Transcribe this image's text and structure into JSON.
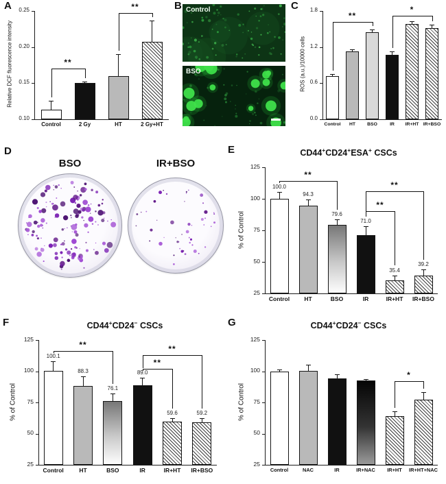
{
  "figure": {
    "background": "#ffffff",
    "panels": {
      "A": {
        "label": "A"
      },
      "B": {
        "label": "B",
        "images": [
          {
            "caption": "Control"
          },
          {
            "caption": "BSO"
          }
        ]
      },
      "C": {
        "label": "C"
      },
      "D": {
        "label": "D",
        "dishes": [
          {
            "caption": "BSO"
          },
          {
            "caption": "IR+BSO"
          }
        ]
      },
      "E": {
        "label": "E"
      },
      "F": {
        "label": "F"
      },
      "G": {
        "label": "G"
      }
    },
    "colors": {
      "bar_white": "#ffffff",
      "bar_black": "#111111",
      "bar_gray": "#b9b9b9",
      "axis": "#1a1a1a",
      "fluorescence_green_bright": "#3fe04a",
      "fluorescence_green_dim": "#2fa23f",
      "colony_purple": "#8b2fc9"
    }
  },
  "chart_data": [
    {
      "panel": "A",
      "type": "bar",
      "title": "",
      "ylabel": "Relative DCF fluorescence intensity",
      "ylim": [
        0.1,
        0.25
      ],
      "yticks": [
        0.1,
        0.15,
        0.2,
        0.25
      ],
      "ytick_labels": [
        "0.10",
        "0.15",
        "0.20",
        "0.25"
      ],
      "categories": [
        "Control",
        "2 Gy",
        "HT",
        "2 Gy+HT"
      ],
      "values": [
        0.113,
        0.15,
        0.16,
        0.207
      ],
      "errors": [
        0.013,
        0.002,
        0.03,
        0.03
      ],
      "bar_styles": [
        "white",
        "black",
        "gray",
        "hatch"
      ],
      "value_labels": null,
      "brackets": [
        {
          "from": 0,
          "to": 1,
          "label": "**",
          "y": 0.17
        },
        {
          "from": 2,
          "to": 3,
          "label": "**",
          "y": 0.247
        }
      ]
    },
    {
      "panel": "C",
      "type": "bar",
      "title": "",
      "ylabel": "ROS (a.u.)/10000 cells",
      "ylim": [
        0,
        1.8
      ],
      "yticks": [
        0,
        0.6,
        1.2,
        1.8
      ],
      "ytick_labels": [
        "0.0",
        "0.6",
        "1.2",
        "1.8"
      ],
      "categories": [
        "Control",
        "HT",
        "BSO",
        "IR",
        "IR+HT",
        "IR+BSO"
      ],
      "values": [
        0.72,
        1.13,
        1.45,
        1.07,
        1.58,
        1.52
      ],
      "errors": [
        0.03,
        0.03,
        0.04,
        0.06,
        0.05,
        0.05
      ],
      "bar_styles": [
        "white",
        "gray",
        "gray-light",
        "black",
        "hatch",
        "hatch"
      ],
      "value_labels": null,
      "brackets": [
        {
          "from": 0,
          "to": 2,
          "label": "**",
          "y": 1.62
        },
        {
          "from": 3,
          "to": 5,
          "label": "*",
          "y": 1.72
        }
      ]
    },
    {
      "panel": "E",
      "type": "bar",
      "title": "CD44+CD24+ESA+ CSCs",
      "ylabel": "% of Control",
      "ylim": [
        25,
        125
      ],
      "yticks": [
        25,
        50,
        75,
        100,
        125
      ],
      "ytick_labels": [
        "25",
        "50",
        "75",
        "100",
        "125"
      ],
      "categories": [
        "Control",
        "HT",
        "BSO",
        "IR",
        "IR+HT",
        "IR+BSO"
      ],
      "values": [
        100.0,
        94.3,
        79.6,
        71.0,
        35.4,
        39.2
      ],
      "errors": [
        5.5,
        5.0,
        4.0,
        7.0,
        4.0,
        5.0
      ],
      "bar_styles": [
        "white",
        "gray",
        "gradient",
        "black",
        "hatch",
        "hatch"
      ],
      "value_labels": [
        "100.0",
        "94.3",
        "79.6",
        "71.0",
        "35.4",
        "39.2"
      ],
      "brackets": [
        {
          "from": 0,
          "to": 2,
          "label": "**",
          "y": 114
        },
        {
          "from": 3,
          "to": 4,
          "label": "**",
          "y": 90
        },
        {
          "from": 3,
          "to": 5,
          "label": "**",
          "y": 106
        }
      ]
    },
    {
      "panel": "F",
      "type": "bar",
      "title": "CD44+CD24- CSCs",
      "ylabel": "% of Control",
      "ylim": [
        25,
        125
      ],
      "yticks": [
        25,
        50,
        75,
        100,
        125
      ],
      "ytick_labels": [
        "25",
        "50",
        "75",
        "100",
        "125"
      ],
      "categories": [
        "Control",
        "HT",
        "BSO",
        "IR",
        "IR+HT",
        "IR+BSO"
      ],
      "values": [
        100.1,
        88.3,
        76.1,
        89.0,
        59.6,
        59.2
      ],
      "errors": [
        8.0,
        7.5,
        6.0,
        6.0,
        3.0,
        3.0
      ],
      "bar_styles": [
        "white",
        "gray",
        "gradient",
        "black",
        "hatch",
        "hatch"
      ],
      "value_labels": [
        "100.1",
        "88.3",
        "76.1",
        "89.0",
        "59.6",
        "59.2"
      ],
      "brackets": [
        {
          "from": 0,
          "to": 2,
          "label": "**",
          "y": 116
        },
        {
          "from": 3,
          "to": 4,
          "label": "**",
          "y": 102
        },
        {
          "from": 3,
          "to": 5,
          "label": "**",
          "y": 113
        }
      ]
    },
    {
      "panel": "G",
      "type": "bar",
      "title": "CD44+CD24- CSCs",
      "ylabel": "% of Control",
      "ylim": [
        25,
        125
      ],
      "yticks": [
        25,
        50,
        75,
        100,
        125
      ],
      "ytick_labels": [
        "25",
        "50",
        "75",
        "100",
        "125"
      ],
      "categories": [
        "Control",
        "NAC",
        "IR",
        "IR+NAC",
        "IR+HT",
        "IR+HT+NAC"
      ],
      "values": [
        99.8,
        100.5,
        94.0,
        92.5,
        64.0,
        77.0
      ],
      "errors": [
        1.5,
        4.5,
        3.5,
        1.0,
        4.0,
        6.0
      ],
      "bar_styles": [
        "white",
        "gray",
        "black",
        "gradient-dark",
        "hatch",
        "hatch"
      ],
      "value_labels": null,
      "brackets": [
        {
          "from": 4,
          "to": 5,
          "label": "*",
          "y": 92
        }
      ]
    }
  ]
}
